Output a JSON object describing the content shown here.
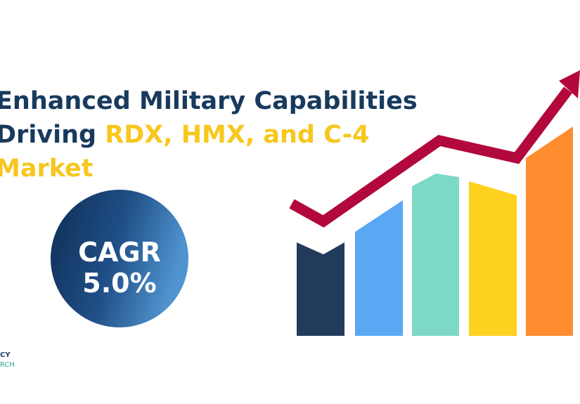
{
  "headline": {
    "line1": "Enhanced Military Capabilities",
    "line2_lead": "Driving",
    "line2_highlight": "RDX, HMX, and C-4",
    "line3": "Market"
  },
  "badge": {
    "label": "CAGR",
    "value": "5.0%"
  },
  "logo": {
    "line1": "CY",
    "line2": "RCH"
  }
}
